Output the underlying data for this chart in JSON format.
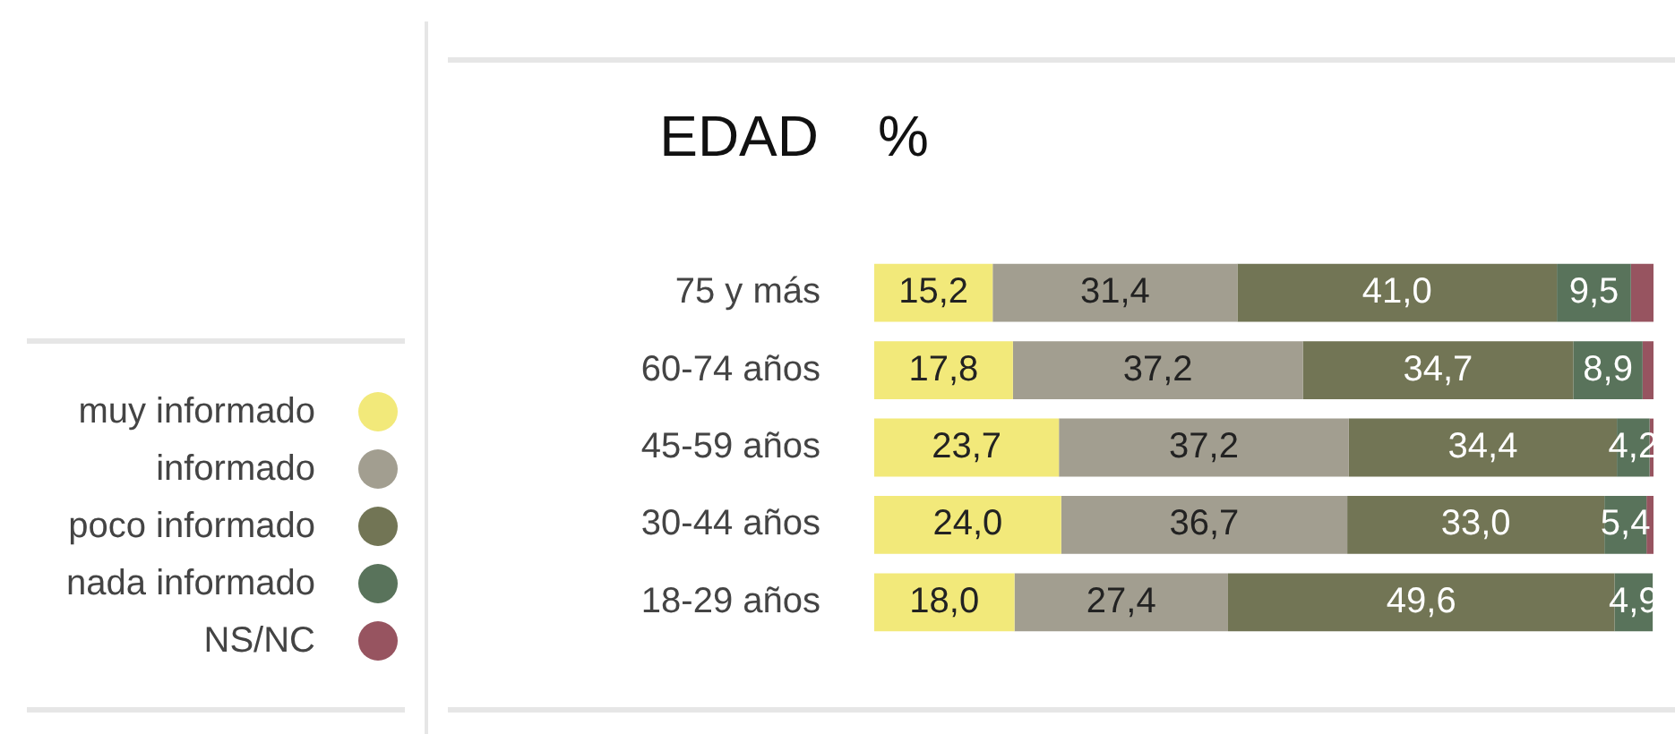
{
  "chart_data": {
    "type": "bar",
    "orientation": "horizontal",
    "stacked": true,
    "xlabel": "%",
    "ylabel": "EDAD",
    "categories": [
      "75 y más",
      "60-74 años",
      "45-59 años",
      "30-44 años",
      "18-29 años"
    ],
    "series": [
      {
        "name": "muy informado",
        "color": "#f2e97a",
        "values": [
          15.2,
          17.8,
          23.7,
          24.0,
          18.0
        ],
        "value_labels": [
          "15,2",
          "17,8",
          "23,7",
          "24,0",
          "18,0"
        ]
      },
      {
        "name": "informado",
        "color": "#a29e90",
        "values": [
          31.4,
          37.2,
          37.2,
          36.7,
          27.4
        ],
        "value_labels": [
          "31,4",
          "37,2",
          "37,2",
          "36,7",
          "27,4"
        ]
      },
      {
        "name": "poco informado",
        "color": "#727555",
        "values": [
          41.0,
          34.7,
          34.4,
          33.0,
          49.6
        ],
        "value_labels": [
          "41,0",
          "34,7",
          "34,4",
          "33,0",
          "49,6"
        ]
      },
      {
        "name": "nada informado",
        "color": "#59735b",
        "values": [
          9.5,
          8.9,
          4.2,
          5.4,
          4.9
        ],
        "value_labels": [
          "9,5",
          "8,9",
          "4,2",
          "5,4",
          "4,9"
        ]
      },
      {
        "name": "NS/NC",
        "color": "#975460",
        "values": [
          2.9,
          1.4,
          0.5,
          0.9,
          null
        ],
        "value_labels": [
          null,
          null,
          null,
          null,
          null
        ]
      }
    ],
    "xlim": [
      0,
      100
    ],
    "tick_labels": "y",
    "grid": false,
    "legend": "left"
  }
}
